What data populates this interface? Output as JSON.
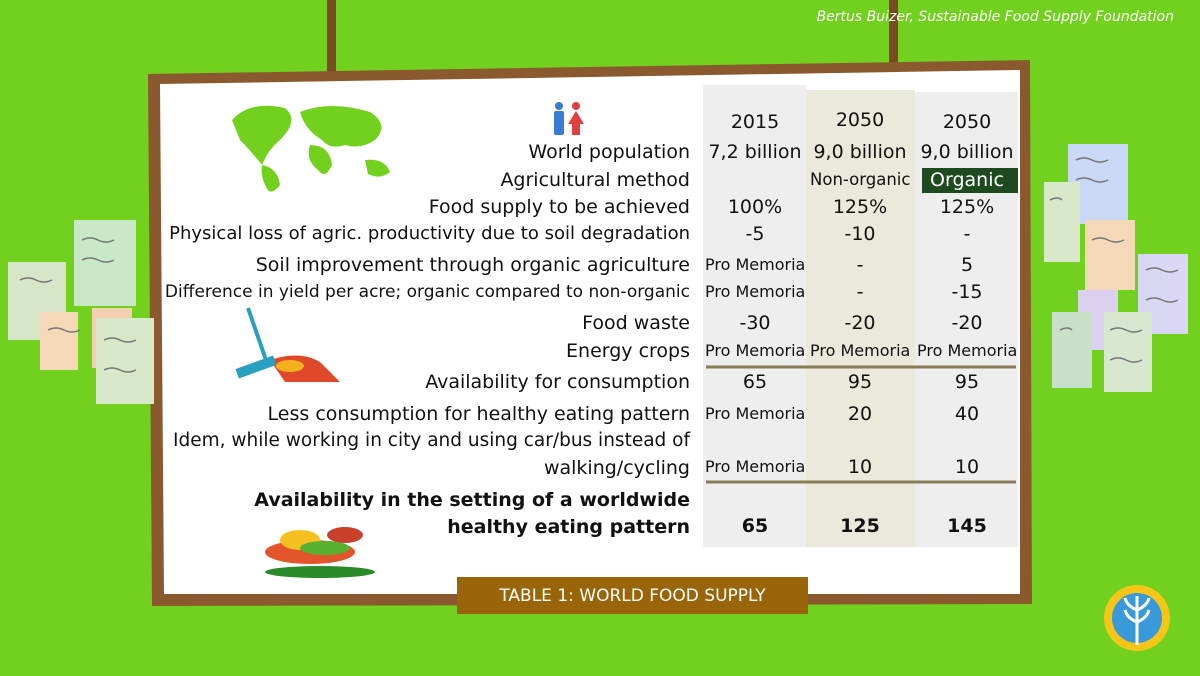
{
  "author": "Bertus Buizer, Sustainable Food Supply Foundation",
  "table": {
    "columns": [
      "2015",
      "2050",
      "2050"
    ],
    "rows": [
      {
        "label": [
          "World population"
        ],
        "cells": [
          "7,2 billion",
          "9,0 billion",
          "9,0 billion"
        ]
      },
      {
        "label": [
          "Agricultural method"
        ],
        "cells": [
          null,
          "Non-organic",
          "Organic"
        ]
      },
      {
        "label": [
          "Food supply to be achieved"
        ],
        "cells": [
          "100%",
          "125%",
          "125%"
        ]
      },
      {
        "label": [
          "Physical loss of agric. productivity due to soil degradation"
        ],
        "cells": [
          "-5",
          "-10",
          "-"
        ]
      },
      {
        "label": [
          "Soil improvement through organic agriculture"
        ],
        "cells": [
          "Pro Memoria",
          "-",
          "5"
        ]
      },
      {
        "label": [
          "Difference in yield per acre; organic compared to non-organic"
        ],
        "cells": [
          "Pro Memoria",
          "-",
          "-15"
        ]
      },
      {
        "label": [
          "Food waste"
        ],
        "cells": [
          "-30",
          "-20",
          "-20"
        ]
      },
      {
        "label": [
          "Energy crops"
        ],
        "cells": [
          "Pro Memoria",
          "Pro Memoria",
          "Pro Memoria"
        ]
      },
      {
        "label": [
          "Availability for consumption"
        ],
        "cells": [
          "65",
          "95",
          "95"
        ]
      },
      {
        "label": [
          "Less consumption for healthy eating pattern"
        ],
        "cells": [
          "Pro Memoria",
          "20",
          "40"
        ]
      },
      {
        "label": [
          "Idem, while working in city and using car/bus instead of",
          "walking/cycling"
        ],
        "cells": [
          "Pro Memoria",
          "10",
          "10"
        ]
      },
      {
        "label": [
          "Availability in the setting of a worldwide",
          "healthy eating pattern"
        ],
        "cells": [
          "65",
          "125",
          "145"
        ]
      }
    ],
    "caption": "TABLE 1: WORLD FOOD SUPPLY"
  }
}
